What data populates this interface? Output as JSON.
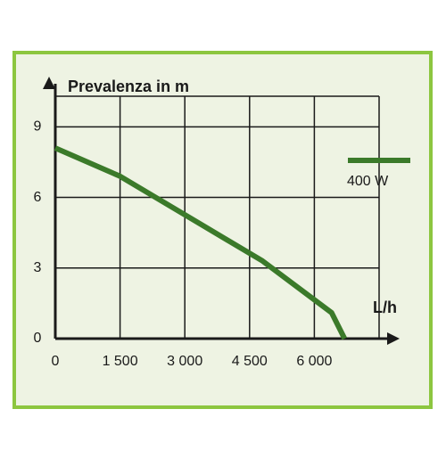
{
  "chart_data": {
    "type": "line",
    "y_label": "Prevalenza in m",
    "x_label": "L/h",
    "x": [
      0,
      1500,
      4800,
      6400,
      6700
    ],
    "series": [
      {
        "name": "400 W",
        "color": "#3b7a2a",
        "values": [
          8.1,
          6.9,
          3.3,
          1.1,
          0
        ]
      }
    ],
    "xlim": [
      0,
      7500
    ],
    "ylim": [
      0,
      10.3
    ],
    "xticks": [
      0,
      {
        "value": 1500,
        "label": "1 500"
      },
      {
        "value": 3000,
        "label": "3 000"
      },
      {
        "value": 4500,
        "label": "4 500"
      },
      {
        "value": 6000,
        "label": "6 000"
      }
    ],
    "yticks": [
      0,
      3,
      6,
      9
    ],
    "grid": true
  }
}
